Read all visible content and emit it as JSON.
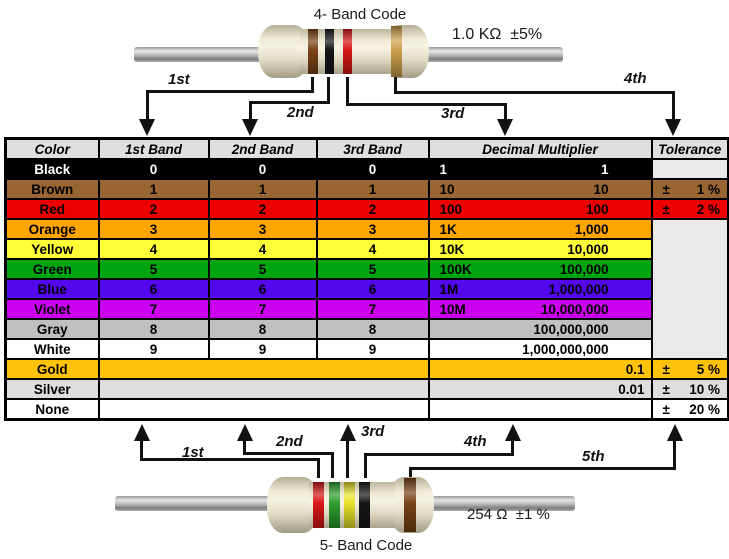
{
  "four_band": {
    "title": "4- Band Code",
    "value": "1.0 KΩ  ±5%",
    "band_colors": [
      "brown",
      "black",
      "red",
      "gold"
    ],
    "arrow_labels": [
      "1st",
      "2nd",
      "3rd",
      "4th"
    ]
  },
  "five_band": {
    "title": "5- Band Code",
    "value": "254 Ω  ±1 %",
    "band_colors": [
      "red",
      "green",
      "yellow",
      "black",
      "brown"
    ],
    "arrow_labels": [
      "1st",
      "2nd",
      "3rd",
      "4th",
      "5th"
    ]
  },
  "table": {
    "headers": [
      "Color",
      "1st Band",
      "2nd Band",
      "3rd Band",
      "Decimal Multiplier",
      "Tolerance"
    ],
    "rows": [
      {
        "color": "Black",
        "bg": "#000000",
        "fg": "#FFFFFF",
        "bands": [
          "0",
          "0",
          "0"
        ],
        "mult_prefix": "1",
        "mult_value": "1",
        "tol_sign": "",
        "tol_value": ""
      },
      {
        "color": "Brown",
        "bg": "#996633",
        "fg": "#000000",
        "bands": [
          "1",
          "1",
          "1"
        ],
        "mult_prefix": "10",
        "mult_value": "10",
        "tol_sign": "±",
        "tol_value": "1 %"
      },
      {
        "color": "Red",
        "bg": "#EE0000",
        "fg": "#000000",
        "bands": [
          "2",
          "2",
          "2"
        ],
        "mult_prefix": "100",
        "mult_value": "100",
        "tol_sign": "±",
        "tol_value": "2 %"
      },
      {
        "color": "Orange",
        "bg": "#FFA500",
        "fg": "#000000",
        "bands": [
          "3",
          "3",
          "3"
        ],
        "mult_prefix": "1K",
        "mult_value": "1,000",
        "tol_sign": "",
        "tol_value": ""
      },
      {
        "color": "Yellow",
        "bg": "#FFFF38",
        "fg": "#000000",
        "bands": [
          "4",
          "4",
          "4"
        ],
        "mult_prefix": "10K",
        "mult_value": "10,000",
        "tol_sign": "",
        "tol_value": ""
      },
      {
        "color": "Green",
        "bg": "#00A410",
        "fg": "#000000",
        "bands": [
          "5",
          "5",
          "5"
        ],
        "mult_prefix": "100K",
        "mult_value": "100,000",
        "tol_sign": "",
        "tol_value": ""
      },
      {
        "color": "Blue",
        "bg": "#5408EE",
        "fg": "#000000",
        "bands": [
          "6",
          "6",
          "6"
        ],
        "mult_prefix": "1M",
        "mult_value": "1,000,000",
        "tol_sign": "",
        "tol_value": ""
      },
      {
        "color": "Violet",
        "bg": "#CC00F0",
        "fg": "#000000",
        "bands": [
          "7",
          "7",
          "7"
        ],
        "mult_prefix": "10M",
        "mult_value": "10,000,000",
        "tol_sign": "",
        "tol_value": ""
      },
      {
        "color": "Gray",
        "bg": "#C0C0C0",
        "fg": "#000000",
        "bands": [
          "8",
          "8",
          "8"
        ],
        "mult_prefix": "",
        "mult_value": "100,000,000",
        "tol_sign": "",
        "tol_value": ""
      },
      {
        "color": "White",
        "bg": "#FFFFFF",
        "fg": "#000000",
        "bands": [
          "9",
          "9",
          "9"
        ],
        "mult_prefix": "",
        "mult_value": "1,000,000,000",
        "tol_sign": "",
        "tol_value": ""
      },
      {
        "color": "Gold",
        "bg": "#FFC20A",
        "fg": "#000000",
        "bands": null,
        "mult_prefix": "",
        "mult_value": "0.1",
        "tol_sign": "±",
        "tol_value": "5 %"
      },
      {
        "color": "Silver",
        "bg": "#DEDEDE",
        "fg": "#000000",
        "bands": null,
        "mult_prefix": "",
        "mult_value": "0.01",
        "tol_sign": "±",
        "tol_value": "10 %"
      },
      {
        "color": "None",
        "bg": "#FFFFFF",
        "fg": "#000000",
        "bands": null,
        "mult_prefix": "",
        "mult_value": "",
        "tol_sign": "±",
        "tol_value": "20 %"
      }
    ]
  },
  "colors": {
    "header_bg": "#DFDFDF",
    "empty_tolerance_bg": "#E9E9E9",
    "border": "#000000",
    "resistor_body": "#EFE9D5",
    "band_brown": "#7A4418",
    "band_black": "#161616",
    "band_red": "#D81616",
    "band_gold": "#CFA24E",
    "band_green": "#2E9E2E",
    "band_yellow": "#E8E22A"
  }
}
